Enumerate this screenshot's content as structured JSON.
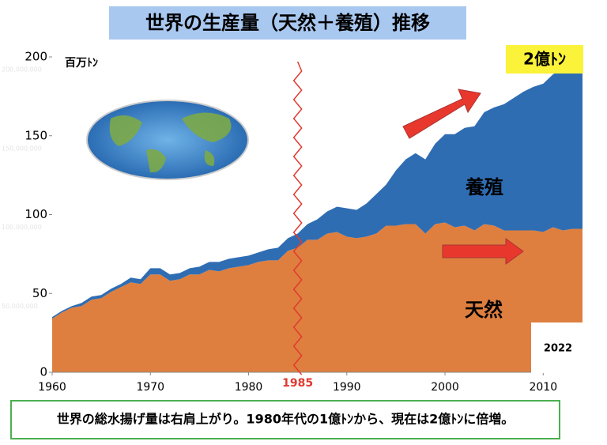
{
  "chart_data": {
    "type": "stacked-area",
    "title": "世界の生産量（天然＋養殖）推移",
    "y_unit": "百万ﾄﾝ",
    "badge": "2億ﾄﾝ",
    "marker": {
      "x": 1985
    },
    "year_note": "2022",
    "caption": "世界の総水揚げ量は右肩上がり。1980年代の1億ﾄﾝから、現在は2億ﾄﾝに倍増。",
    "faint_labels": [
      "200,000,000",
      "150,000,000",
      "100,000,000",
      "50,000,000"
    ],
    "x": [
      1960,
      1961,
      1962,
      1963,
      1964,
      1965,
      1966,
      1967,
      1968,
      1969,
      1970,
      1971,
      1972,
      1973,
      1974,
      1975,
      1976,
      1977,
      1978,
      1979,
      1980,
      1981,
      1982,
      1983,
      1984,
      1985,
      1986,
      1987,
      1988,
      1989,
      1990,
      1991,
      1992,
      1993,
      1994,
      1995,
      1996,
      1997,
      1998,
      1999,
      2000,
      2001,
      2002,
      2003,
      2004,
      2005,
      2006,
      2007,
      2008,
      2009,
      2010,
      2011,
      2012,
      2013,
      2014
    ],
    "series": [
      {
        "name": "天然",
        "color": "#de7f3f",
        "values": [
          34,
          38,
          41,
          42,
          46,
          47,
          51,
          54,
          57,
          56,
          62,
          62,
          58,
          59,
          62,
          62,
          65,
          64,
          66,
          67,
          68,
          70,
          71,
          71,
          77,
          79,
          84,
          84,
          88,
          89,
          86,
          85,
          86,
          88,
          93,
          93,
          94,
          94,
          88,
          94,
          95,
          92,
          93,
          90,
          94,
          93,
          90,
          90,
          90,
          90,
          89,
          92,
          90,
          91,
          91
        ]
      },
      {
        "name": "養殖",
        "color": "#2f6db3",
        "values": [
          1,
          1,
          1,
          2,
          2,
          2,
          2,
          2,
          3,
          3,
          4,
          4,
          4,
          4,
          4,
          5,
          5,
          6,
          6,
          6,
          6,
          6,
          7,
          8,
          8,
          9,
          10,
          13,
          14,
          16,
          18,
          18,
          21,
          25,
          26,
          35,
          41,
          45,
          47,
          51,
          56,
          59,
          62,
          66,
          71,
          75,
          80,
          84,
          88,
          91,
          94,
          97,
          102,
          104,
          106
        ]
      }
    ],
    "xlim": [
      1960,
      2014
    ],
    "xticks": [
      1960,
      1970,
      1980,
      1990,
      2000,
      2010
    ],
    "ylim": [
      0,
      200
    ],
    "yticks": [
      0,
      50,
      100,
      150,
      200
    ]
  }
}
